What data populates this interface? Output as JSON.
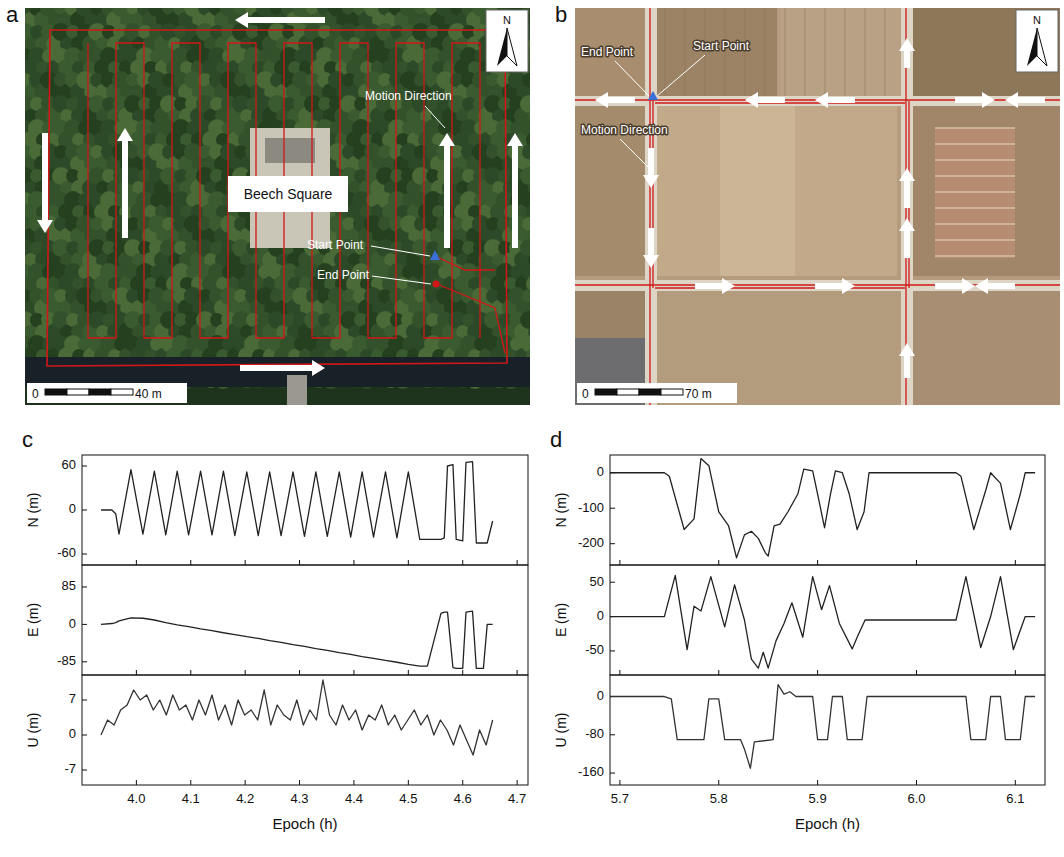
{
  "maps": [
    {
      "letter": "a",
      "north": "N",
      "place": "Beech Square",
      "motion": "Motion Direction",
      "start": "Start Point",
      "end": "End Point",
      "scale_bar": [
        "0",
        "40 m"
      ]
    },
    {
      "letter": "b",
      "north": "N",
      "motion": "Motion Direction",
      "start": "Start Point",
      "end": "End Point",
      "scale_bar": [
        "0",
        "70 m"
      ]
    }
  ],
  "chart_data": [
    {
      "type": "line",
      "panel": "c",
      "ylabel": "N (m)",
      "color": "#222222",
      "tick_labels": "y",
      "xlim": [
        3.9,
        4.72
      ],
      "xticks": [
        {
          "value": 4,
          "label": "4.0"
        },
        4.1,
        4.2,
        4.3,
        4.4,
        4.5,
        4.6,
        4.7
      ],
      "ylim": [
        -75,
        75
      ],
      "yticks": [
        -60,
        0,
        60
      ],
      "x": [
        3.935,
        3.955,
        3.962,
        3.968,
        3.99,
        4.012,
        4.033,
        4.054,
        4.075,
        4.096,
        4.118,
        4.139,
        4.16,
        4.181,
        4.203,
        4.224,
        4.245,
        4.266,
        4.288,
        4.309,
        4.33,
        4.351,
        4.373,
        4.394,
        4.415,
        4.436,
        4.458,
        4.479,
        4.5,
        4.521,
        4.535,
        4.56,
        4.566,
        4.572,
        4.582,
        4.588,
        4.6,
        4.606,
        4.618,
        4.625,
        4.638,
        4.645,
        4.655
      ],
      "values": [
        0,
        0,
        -5,
        -33,
        55,
        -33,
        53,
        -34,
        53,
        -34,
        53,
        -34,
        53,
        -35,
        52,
        -35,
        52,
        -35,
        52,
        -36,
        52,
        -36,
        52,
        -37,
        52,
        -37,
        52,
        -38,
        52,
        -40,
        -40,
        -40,
        -38,
        60,
        62,
        -40,
        -42,
        65,
        66,
        -45,
        -45,
        -45,
        -15
      ]
    },
    {
      "type": "line",
      "ylabel": "E (m)",
      "color": "#222222",
      "tick_labels": "y",
      "xlim": [
        3.9,
        4.72
      ],
      "xticks": [
        {
          "value": 4,
          "label": "4.0"
        },
        4.1,
        4.2,
        4.3,
        4.4,
        4.5,
        4.6,
        4.7
      ],
      "ylim": [
        -115,
        135
      ],
      "yticks": [
        -85,
        0,
        85
      ],
      "x": [
        3.935,
        3.955,
        3.962,
        3.968,
        3.99,
        4.012,
        4.033,
        4.054,
        4.075,
        4.096,
        4.118,
        4.139,
        4.16,
        4.181,
        4.203,
        4.224,
        4.245,
        4.266,
        4.288,
        4.309,
        4.33,
        4.351,
        4.373,
        4.394,
        4.415,
        4.436,
        4.458,
        4.479,
        4.5,
        4.521,
        4.535,
        4.56,
        4.566,
        4.572,
        4.582,
        4.588,
        4.6,
        4.606,
        4.618,
        4.625,
        4.638,
        4.645,
        4.655
      ],
      "values": [
        0,
        2,
        4,
        8,
        15,
        14,
        10,
        4,
        -1,
        -5,
        -10,
        -14,
        -19,
        -23,
        -28,
        -32,
        -37,
        -41,
        -46,
        -50,
        -55,
        -59,
        -64,
        -68,
        -73,
        -77,
        -82,
        -86,
        -91,
        -95,
        -95,
        25,
        28,
        28,
        -98,
        -100,
        -100,
        28,
        30,
        -100,
        -100,
        0,
        0
      ]
    },
    {
      "type": "line",
      "ylabel": "U (m)",
      "xlabel": "Epoch (h)",
      "color": "#333333",
      "xlim": [
        3.9,
        4.72
      ],
      "xticks": [
        {
          "value": 4,
          "label": "4.0"
        },
        4.1,
        4.2,
        4.3,
        4.4,
        4.5,
        4.6,
        4.7
      ],
      "ylim": [
        -10,
        12
      ],
      "yticks": [
        -7,
        0,
        7
      ],
      "x": [
        3.935,
        3.947,
        3.959,
        3.971,
        3.983,
        3.995,
        4.007,
        4.019,
        4.031,
        4.043,
        4.055,
        4.067,
        4.079,
        4.091,
        4.103,
        4.115,
        4.127,
        4.139,
        4.151,
        4.163,
        4.175,
        4.187,
        4.199,
        4.211,
        4.223,
        4.235,
        4.247,
        4.259,
        4.271,
        4.283,
        4.295,
        4.307,
        4.319,
        4.331,
        4.343,
        4.355,
        4.367,
        4.379,
        4.391,
        4.403,
        4.415,
        4.427,
        4.439,
        4.451,
        4.463,
        4.475,
        4.487,
        4.499,
        4.511,
        4.523,
        4.535,
        4.547,
        4.559,
        4.571,
        4.583,
        4.595,
        4.607,
        4.619,
        4.631,
        4.643,
        4.655
      ],
      "values": [
        0,
        3,
        2,
        5,
        6,
        9,
        7,
        8,
        5,
        7,
        4,
        8,
        5,
        6,
        3,
        7,
        4,
        8,
        3,
        6,
        2,
        7,
        4,
        5,
        3,
        9,
        2,
        6,
        4,
        3,
        7,
        2,
        5,
        3,
        11,
        4,
        2,
        6,
        3,
        5,
        1,
        4,
        3,
        6,
        2,
        4,
        1,
        3,
        5,
        2,
        4,
        0,
        3,
        1,
        -2,
        2,
        -1,
        -4,
        1,
        -2,
        3
      ]
    },
    {
      "type": "line",
      "panel": "d",
      "ylabel": "N (m)",
      "color": "#222222",
      "tick_labels": "y",
      "xlim": [
        5.69,
        6.13
      ],
      "xticks": [
        5.7,
        5.8,
        5.9,
        {
          "value": 6,
          "label": "6.0"
        },
        6.1
      ],
      "ylim": [
        -260,
        50
      ],
      "yticks": [
        -200,
        -100,
        0
      ],
      "x": [
        5.69,
        5.745,
        5.75,
        5.765,
        5.775,
        5.782,
        5.79,
        5.8,
        5.81,
        5.818,
        5.826,
        5.833,
        5.84,
        5.847,
        5.85,
        5.856,
        5.862,
        5.87,
        5.88,
        5.886,
        5.895,
        5.9,
        5.907,
        5.913,
        5.918,
        5.925,
        5.932,
        5.94,
        5.947,
        5.952,
        6.04,
        6.045,
        6.058,
        6.07,
        6.075,
        6.085,
        6.095,
        6.105,
        6.11,
        6.12
      ],
      "values": [
        0,
        0,
        -10,
        -160,
        -130,
        40,
        20,
        -110,
        -150,
        -240,
        -175,
        -165,
        -185,
        -225,
        -235,
        -150,
        -145,
        -110,
        -60,
        10,
        5,
        -60,
        -155,
        -60,
        5,
        0,
        -60,
        -160,
        -110,
        0,
        0,
        -10,
        -160,
        -50,
        0,
        -30,
        -160,
        -60,
        0,
        0
      ]
    },
    {
      "type": "line",
      "ylabel": "E (m)",
      "color": "#222222",
      "tick_labels": "y",
      "xlim": [
        5.69,
        6.13
      ],
      "xticks": [
        5.7,
        5.8,
        5.9,
        {
          "value": 6,
          "label": "6.0"
        },
        6.1
      ],
      "ylim": [
        -85,
        75
      ],
      "yticks": [
        -50,
        0,
        50
      ],
      "x": [
        5.69,
        5.745,
        5.756,
        5.768,
        5.775,
        5.782,
        5.792,
        5.806,
        5.816,
        5.826,
        5.833,
        5.84,
        5.845,
        5.85,
        5.858,
        5.866,
        5.874,
        5.885,
        5.895,
        5.904,
        5.912,
        5.922,
        5.935,
        5.94,
        5.948,
        6.04,
        6.05,
        6.065,
        6.075,
        6.085,
        6.098,
        6.11,
        6.12
      ],
      "values": [
        0,
        0,
        60,
        -48,
        15,
        8,
        58,
        -15,
        46,
        -5,
        -62,
        -75,
        -52,
        -75,
        -35,
        -10,
        20,
        -30,
        58,
        10,
        45,
        -10,
        -47,
        -30,
        -5,
        -5,
        58,
        -45,
        0,
        58,
        -48,
        0,
        0
      ]
    },
    {
      "type": "line",
      "ylabel": "U (m)",
      "xlabel": "Epoch (h)",
      "color": "#333333",
      "xlim": [
        5.69,
        6.13
      ],
      "xticks": [
        5.7,
        5.8,
        5.9,
        {
          "value": 6,
          "label": "6.0"
        },
        6.1
      ],
      "ylim": [
        -185,
        45
      ],
      "yticks": [
        -160,
        -80,
        0
      ],
      "x": [
        5.69,
        5.745,
        5.752,
        5.758,
        5.785,
        5.79,
        5.8,
        5.806,
        5.822,
        5.826,
        5.832,
        5.836,
        5.855,
        5.86,
        5.866,
        5.872,
        5.878,
        5.895,
        5.9,
        5.91,
        5.915,
        5.925,
        5.93,
        5.945,
        5.95,
        6.05,
        6.055,
        6.07,
        6.075,
        6.085,
        6.09,
        6.105,
        6.11,
        6.12
      ],
      "values": [
        0,
        0,
        -5,
        -90,
        -90,
        -5,
        -5,
        -90,
        -90,
        -110,
        -150,
        -95,
        -90,
        25,
        5,
        10,
        0,
        0,
        -90,
        -90,
        0,
        0,
        -90,
        -90,
        0,
        0,
        -90,
        -90,
        0,
        0,
        -90,
        -90,
        0,
        0
      ]
    }
  ]
}
